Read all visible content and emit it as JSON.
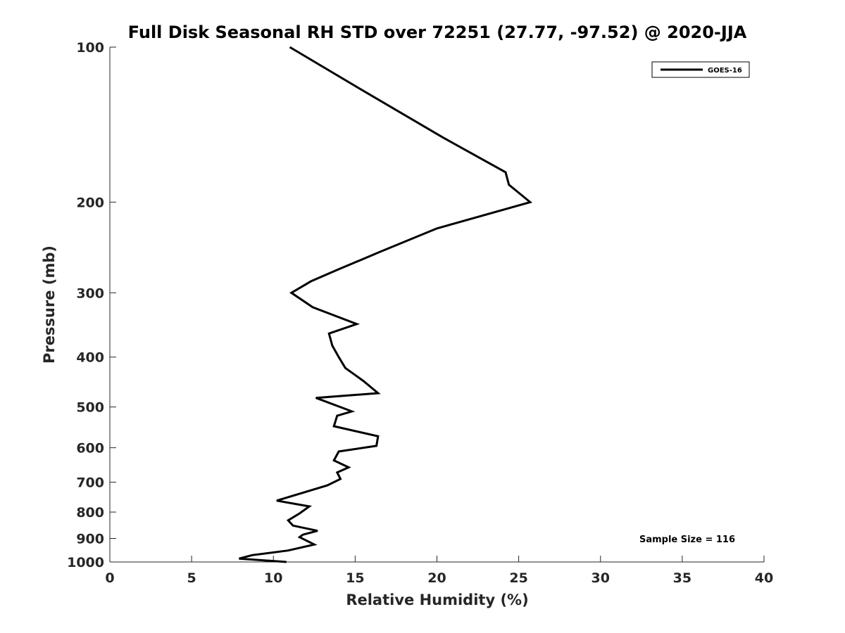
{
  "chart_data": {
    "type": "line",
    "title": "Full Disk Seasonal RH STD over 72251 (27.77, -97.52) @ 2020-JJA",
    "xlabel": "Relative Humidity (%)",
    "ylabel": "Pressure (mb)",
    "xlim": [
      0,
      40
    ],
    "ylim": [
      100,
      1000
    ],
    "y_scale": "log",
    "y_reversed": true,
    "x_ticks": [
      0,
      5,
      10,
      15,
      20,
      25,
      30,
      35,
      40
    ],
    "y_ticks": [
      100,
      200,
      300,
      400,
      500,
      600,
      700,
      800,
      900,
      1000
    ],
    "grid": false,
    "legend_position": "top-right",
    "series": [
      {
        "name": "GOES-16",
        "color": "#000000",
        "x": [
          11.0,
          15.2,
          20.4,
          24.2,
          24.4,
          25.7,
          20.0,
          16.5,
          14.0,
          12.3,
          11.1,
          12.4,
          15.1,
          13.4,
          13.6,
          14.0,
          14.4,
          15.5,
          16.4,
          12.6,
          14.8,
          13.9,
          13.7,
          16.4,
          16.3,
          14.0,
          13.7,
          14.6,
          13.9,
          14.1,
          13.3,
          10.2,
          12.2,
          11.6,
          10.9,
          11.2,
          12.7,
          11.8,
          11.6,
          12.5,
          10.9,
          8.7,
          7.9,
          10.8
        ],
        "y": [
          100,
          120,
          150,
          175,
          185,
          200,
          225,
          250,
          270,
          285,
          300,
          320,
          345,
          360,
          380,
          400,
          420,
          445,
          470,
          480,
          510,
          520,
          545,
          570,
          595,
          610,
          635,
          655,
          670,
          690,
          710,
          760,
          780,
          805,
          830,
          850,
          870,
          885,
          895,
          925,
          950,
          970,
          985,
          1000
        ]
      }
    ],
    "annotation": "Sample Size = 116"
  }
}
